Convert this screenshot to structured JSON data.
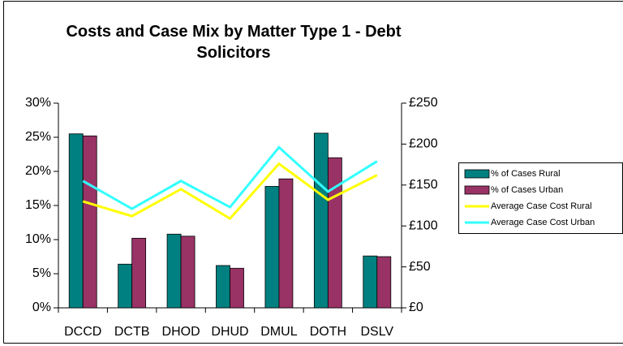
{
  "chart_data": {
    "type": "bar",
    "title": "Costs and Case Mix by Matter Type 1 - Debt Solicitors",
    "categories": [
      "DCCD",
      "DCTB",
      "DHOD",
      "DHUD",
      "DMUL",
      "DOTH",
      "DSLV"
    ],
    "series": [
      {
        "name": "% of Cases Rural",
        "type": "bar",
        "color": "#008080",
        "values": [
          25.5,
          6.4,
          10.8,
          6.2,
          17.8,
          25.6,
          7.6
        ]
      },
      {
        "name": "% of Cases Urban",
        "type": "bar",
        "color": "#993366",
        "values": [
          25.2,
          10.2,
          10.5,
          5.8,
          18.9,
          22.0,
          7.5
        ]
      },
      {
        "name": "Average Case Cost Rural",
        "type": "line",
        "axis": "y2",
        "color": "#ffff00",
        "values": [
          130,
          112,
          145,
          109,
          176,
          132,
          162
        ]
      },
      {
        "name": "Average Case Cost Urban",
        "type": "line",
        "axis": "y2",
        "color": "#33ffff",
        "values": [
          155,
          121,
          155,
          123,
          196,
          142,
          179
        ]
      }
    ],
    "ylim": [
      0,
      30
    ],
    "yticks": [
      {
        "value": 0,
        "label": "0%"
      },
      {
        "value": 5,
        "label": "5%"
      },
      {
        "value": 10,
        "label": "10%"
      },
      {
        "value": 15,
        "label": "15%"
      },
      {
        "value": 20,
        "label": "20%"
      },
      {
        "value": 25,
        "label": "25%"
      },
      {
        "value": 30,
        "label": "30%"
      }
    ],
    "y2lim": [
      0,
      250
    ],
    "y2ticks": [
      {
        "value": 0,
        "label": "£0"
      },
      {
        "value": 50,
        "label": "£50"
      },
      {
        "value": 100,
        "label": "£100"
      },
      {
        "value": 150,
        "label": "£150"
      },
      {
        "value": 200,
        "label": "£200"
      },
      {
        "value": 250,
        "label": "£250"
      }
    ],
    "grid": false,
    "legend": "right"
  }
}
